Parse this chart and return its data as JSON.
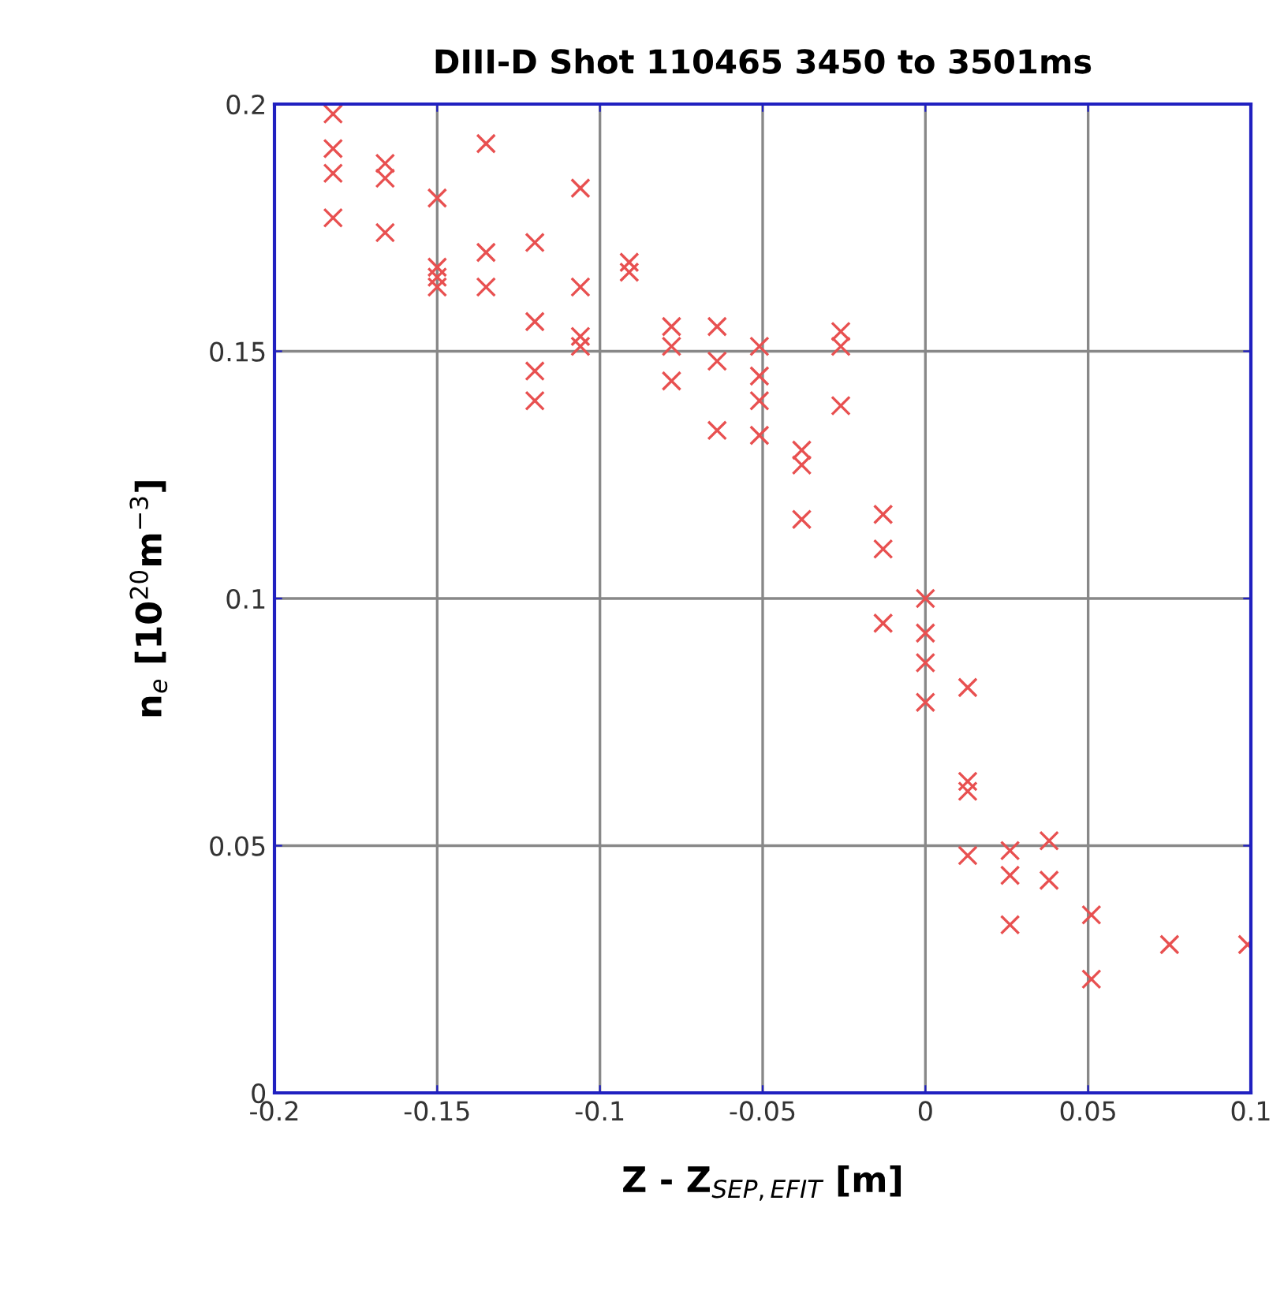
{
  "chart_data": {
    "type": "scatter",
    "title": "DIII-D Shot 110465 3450 to 3501ms",
    "xlabel": "Z - Z$_{SEP,EFIT}$ [m]",
    "ylabel": "n$_{e}$ [10$^{20}$m$^{−3}$]",
    "xlim": [
      -0.2,
      0.1
    ],
    "ylim": [
      0,
      0.2
    ],
    "xticks": [
      -0.2,
      -0.15,
      -0.1,
      -0.05,
      0,
      0.05,
      0.1
    ],
    "yticks": [
      0,
      0.05,
      0.1,
      0.15,
      0.2
    ],
    "grid": true,
    "marker": "cross",
    "series": [
      {
        "color": "#e85050",
        "x": [
          -0.182,
          -0.182,
          -0.182,
          -0.182,
          -0.166,
          -0.166,
          -0.166,
          -0.15,
          -0.15,
          -0.15,
          -0.15,
          -0.135,
          -0.135,
          -0.135,
          -0.12,
          -0.12,
          -0.12,
          -0.12,
          -0.106,
          -0.106,
          -0.106,
          -0.106,
          -0.091,
          -0.091,
          -0.078,
          -0.078,
          -0.078,
          -0.064,
          -0.064,
          -0.064,
          -0.051,
          -0.051,
          -0.051,
          -0.051,
          -0.038,
          -0.038,
          -0.038,
          -0.026,
          -0.026,
          -0.026,
          -0.013,
          -0.013,
          -0.013,
          0,
          0,
          0,
          0,
          0.013,
          0.013,
          0.013,
          0.013,
          0.026,
          0.026,
          0.026,
          0.038,
          0.038,
          0.051,
          0.051,
          0.075,
          0.099
        ],
        "values": [
          0.198,
          0.191,
          0.186,
          0.177,
          0.188,
          0.185,
          0.174,
          0.181,
          0.167,
          0.165,
          0.163,
          0.192,
          0.17,
          0.163,
          0.172,
          0.156,
          0.146,
          0.14,
          0.183,
          0.163,
          0.153,
          0.151,
          0.168,
          0.166,
          0.155,
          0.151,
          0.144,
          0.155,
          0.148,
          0.134,
          0.151,
          0.145,
          0.14,
          0.133,
          0.13,
          0.127,
          0.116,
          0.154,
          0.151,
          0.139,
          0.117,
          0.11,
          0.095,
          0.1,
          0.093,
          0.087,
          0.079,
          0.082,
          0.063,
          0.061,
          0.048,
          0.049,
          0.044,
          0.034,
          0.051,
          0.043,
          0.036,
          0.023,
          0.03,
          0.03
        ]
      }
    ]
  }
}
